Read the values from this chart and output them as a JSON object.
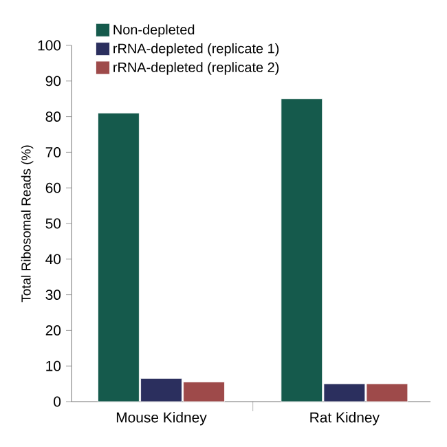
{
  "chart_data": {
    "type": "bar",
    "ylabel": "Total Ribosomal Reads (%)",
    "categories": [
      "Mouse Kidney",
      "Rat Kidney"
    ],
    "series": [
      {
        "name": "Non-depleted",
        "color": "#155a4c",
        "values": [
          81,
          85
        ]
      },
      {
        "name": "rRNA-depleted (replicate 1)",
        "color": "#2b2f5e",
        "values": [
          6.5,
          5
        ]
      },
      {
        "name": "rRNA-depleted (replicate 2)",
        "color": "#9e4a4a",
        "values": [
          5.5,
          5
        ]
      }
    ],
    "ylim": [
      0,
      100
    ],
    "yticks": [
      0,
      10,
      20,
      30,
      40,
      50,
      60,
      70,
      80,
      90,
      100
    ],
    "legend": "top left",
    "grid": false
  }
}
